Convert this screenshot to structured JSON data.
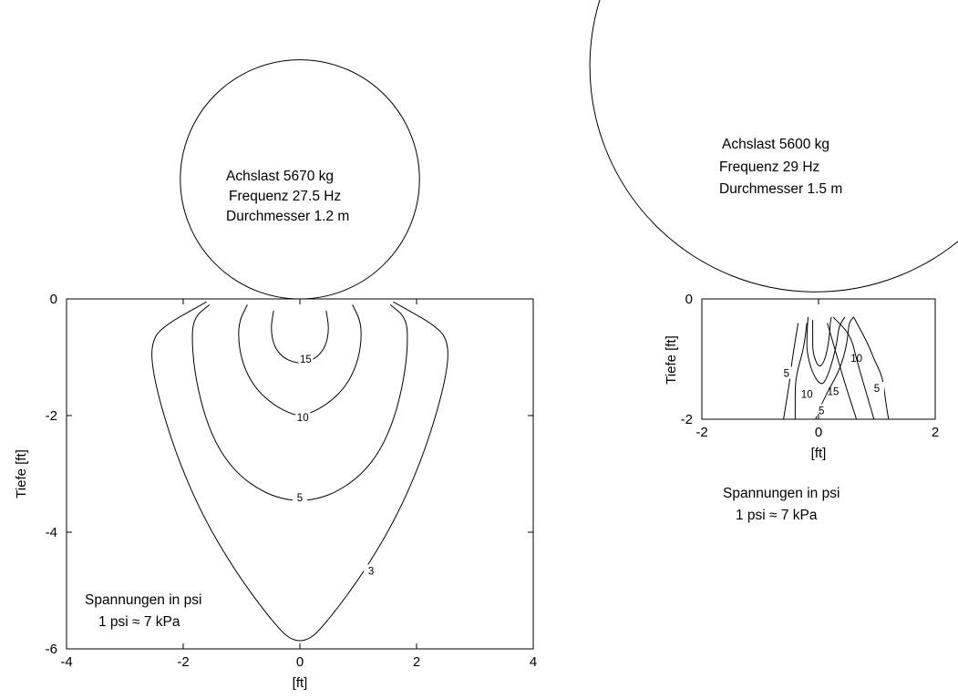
{
  "accent_color": "#000000",
  "chart_data": [
    {
      "type": "contour",
      "xlabel": "[ft]",
      "ylabel": "Tiefe [ft]",
      "xlim": [
        -4,
        4
      ],
      "ylim": [
        -6,
        0
      ],
      "xticks": [
        -4,
        -2,
        0,
        2,
        4
      ],
      "yticks": [
        0,
        -2,
        -4,
        -6
      ],
      "grid": false,
      "wheel": {
        "center": [
          0,
          2.05
        ],
        "radius": 2.05,
        "lines": [
          "Achslast 5670 kg",
          "Frequenz 27.5 Hz",
          "Durchmesser 1.2 m"
        ]
      },
      "note_lines": [
        "Spannungen in psi",
        "1 psi ≈ 7 kPa"
      ],
      "contours": [
        {
          "level": 15,
          "label": "15",
          "label_at": [
            0.1,
            -1.05
          ],
          "points": [
            [
              -0.45,
              -0.2
            ],
            [
              -0.5,
              -0.5
            ],
            [
              -0.45,
              -0.8
            ],
            [
              -0.3,
              -1.0
            ],
            [
              -0.12,
              -1.08
            ],
            [
              0,
              -1.1
            ],
            [
              0.12,
              -1.08
            ],
            [
              0.3,
              -1.0
            ],
            [
              0.45,
              -0.8
            ],
            [
              0.5,
              -0.5
            ],
            [
              0.45,
              -0.2
            ]
          ]
        },
        {
          "level": 10,
          "label": "10",
          "label_at": [
            0.05,
            -2.05
          ],
          "points": [
            [
              -0.9,
              -0.1
            ],
            [
              -1.05,
              -0.4
            ],
            [
              -1.05,
              -0.8
            ],
            [
              -0.95,
              -1.2
            ],
            [
              -0.75,
              -1.55
            ],
            [
              -0.45,
              -1.82
            ],
            [
              -0.15,
              -1.97
            ],
            [
              0,
              -2.0
            ],
            [
              0.15,
              -1.97
            ],
            [
              0.45,
              -1.82
            ],
            [
              0.75,
              -1.55
            ],
            [
              0.95,
              -1.2
            ],
            [
              1.05,
              -0.8
            ],
            [
              1.05,
              -0.4
            ],
            [
              0.9,
              -0.1
            ]
          ]
        },
        {
          "level": 5,
          "label": "5",
          "label_at": [
            0.0,
            -3.42
          ],
          "points": [
            [
              -1.55,
              -0.1
            ],
            [
              -1.83,
              -0.33
            ],
            [
              -1.85,
              -0.8
            ],
            [
              -1.78,
              -1.4
            ],
            [
              -1.62,
              -2.05
            ],
            [
              -1.38,
              -2.6
            ],
            [
              -1.05,
              -3.02
            ],
            [
              -0.65,
              -3.3
            ],
            [
              -0.3,
              -3.43
            ],
            [
              0,
              -3.46
            ],
            [
              0.3,
              -3.43
            ],
            [
              0.65,
              -3.3
            ],
            [
              1.05,
              -3.02
            ],
            [
              1.38,
              -2.6
            ],
            [
              1.62,
              -2.05
            ],
            [
              1.78,
              -1.4
            ],
            [
              1.85,
              -0.8
            ],
            [
              1.83,
              -0.33
            ],
            [
              1.55,
              -0.1
            ]
          ]
        },
        {
          "level": 3,
          "label": "3",
          "label_at": [
            1.22,
            -4.68
          ],
          "points": [
            [
              -1.6,
              -0.05
            ],
            [
              -2.4,
              -0.5
            ],
            [
              -2.55,
              -0.8
            ],
            [
              -2.52,
              -1.25
            ],
            [
              -2.35,
              -1.95
            ],
            [
              -2.05,
              -2.85
            ],
            [
              -1.65,
              -3.75
            ],
            [
              -1.15,
              -4.6
            ],
            [
              -0.65,
              -5.3
            ],
            [
              -0.3,
              -5.72
            ],
            [
              -0.15,
              -5.83
            ],
            [
              0,
              -5.87
            ],
            [
              0.15,
              -5.83
            ],
            [
              0.3,
              -5.72
            ],
            [
              0.65,
              -5.3
            ],
            [
              1.15,
              -4.6
            ],
            [
              1.65,
              -3.75
            ],
            [
              2.05,
              -2.85
            ],
            [
              2.35,
              -1.95
            ],
            [
              2.52,
              -1.25
            ],
            [
              2.55,
              -0.8
            ],
            [
              2.4,
              -0.5
            ],
            [
              1.6,
              -0.05
            ]
          ]
        }
      ]
    },
    {
      "type": "contour",
      "xlabel": "[ft]",
      "ylabel": "Tiefe [ft]",
      "xlim": [
        -2,
        2
      ],
      "ylim": [
        -2,
        0
      ],
      "xticks": [
        -2,
        0,
        2
      ],
      "yticks": [
        0,
        -2
      ],
      "grid": false,
      "wheel": {
        "center": [
          -0.05,
          3.87
        ],
        "radius": 3.87,
        "lines": [
          "Achslast 5600 kg",
          "Frequenz 29 Hz",
          "Durchmesser 1.5 m"
        ]
      },
      "note_lines": [
        "Spannungen in psi",
        "1 psi ≈ 7 kPa"
      ],
      "contours": [
        {
          "level": 5,
          "label": "5",
          "label_at": [
            -0.55,
            -1.25
          ],
          "points": [
            [
              -0.35,
              -0.4
            ],
            [
              -0.4,
              -0.7
            ],
            [
              -0.45,
              -1.0
            ],
            [
              -0.5,
              -1.4
            ],
            [
              -0.55,
              -1.7
            ],
            [
              -0.6,
              -2.0
            ]
          ]
        },
        {
          "level": 10,
          "label": "10",
          "label_at": [
            -0.2,
            -1.6
          ],
          "points": [
            [
              -0.2,
              -0.4
            ],
            [
              -0.25,
              -0.8
            ],
            [
              -0.35,
              -1.15
            ],
            [
              -0.4,
              -1.4
            ],
            [
              -0.4,
              -1.8
            ],
            [
              -0.4,
              -2.0
            ]
          ]
        },
        {
          "level": 15,
          "label": "15",
          "label_at": [
            0.25,
            -1.55
          ],
          "points": [
            [
              -0.1,
              -0.35
            ],
            [
              -0.1,
              -0.6
            ],
            [
              -0.1,
              -0.9
            ],
            [
              0.0,
              -1.15
            ],
            [
              0.1,
              -1.05
            ],
            [
              0.18,
              -0.7
            ],
            [
              0.2,
              -0.4
            ],
            [
              0.22,
              -0.3
            ]
          ]
        },
        {
          "level": 10,
          "label": "10",
          "label_at": [
            0.65,
            -1.0
          ],
          "points": [
            [
              -0.18,
              -0.3
            ],
            [
              -0.2,
              -0.6
            ],
            [
              -0.2,
              -0.9
            ],
            [
              -0.1,
              -1.25
            ],
            [
              0.05,
              -1.45
            ],
            [
              0.15,
              -1.3
            ],
            [
              0.25,
              -1.0
            ],
            [
              0.32,
              -0.7
            ],
            [
              0.35,
              -0.45
            ],
            [
              0.45,
              -0.3
            ]
          ]
        },
        {
          "level": 5,
          "label": "5",
          "label_at": [
            0.05,
            -1.87
          ],
          "points": [
            [
              -0.05,
              -2.0
            ],
            [
              0.05,
              -1.75
            ],
            [
              0.18,
              -1.5
            ],
            [
              0.35,
              -1.2
            ],
            [
              0.45,
              -0.9
            ],
            [
              0.5,
              -0.65
            ],
            [
              0.52,
              -0.4
            ],
            [
              0.6,
              -0.3
            ]
          ]
        },
        {
          "level": 5,
          "label": "5",
          "label_at": [
            1.0,
            -1.5
          ],
          "points": [
            [
              0.6,
              -0.3
            ],
            [
              0.85,
              -0.75
            ],
            [
              0.95,
              -1.0
            ],
            [
              1.1,
              -1.3
            ],
            [
              1.15,
              -1.7
            ],
            [
              1.2,
              -2.0
            ]
          ]
        },
        {
          "level": 10,
          "label": "",
          "label_at": null,
          "points": [
            [
              0.25,
              -0.3
            ],
            [
              0.55,
              -0.6
            ],
            [
              0.65,
              -1.0
            ],
            [
              0.8,
              -1.5
            ],
            [
              0.95,
              -2.0
            ]
          ]
        },
        {
          "level": 15,
          "label": "",
          "label_at": null,
          "points": [
            [
              0.15,
              -0.4
            ],
            [
              0.3,
              -0.9
            ],
            [
              0.45,
              -1.4
            ],
            [
              0.65,
              -2.0
            ]
          ]
        }
      ]
    }
  ]
}
